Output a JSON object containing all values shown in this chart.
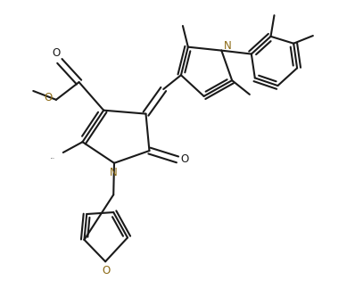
{
  "bg": "#ffffff",
  "bc": "#1a1a1a",
  "bn": "#8B6914",
  "lw": 1.5,
  "fs": 8.5,
  "figsize": [
    3.98,
    3.42
  ],
  "dpi": 100,
  "xlim": [
    0,
    10
  ],
  "ylim": [
    0,
    8.6
  ]
}
